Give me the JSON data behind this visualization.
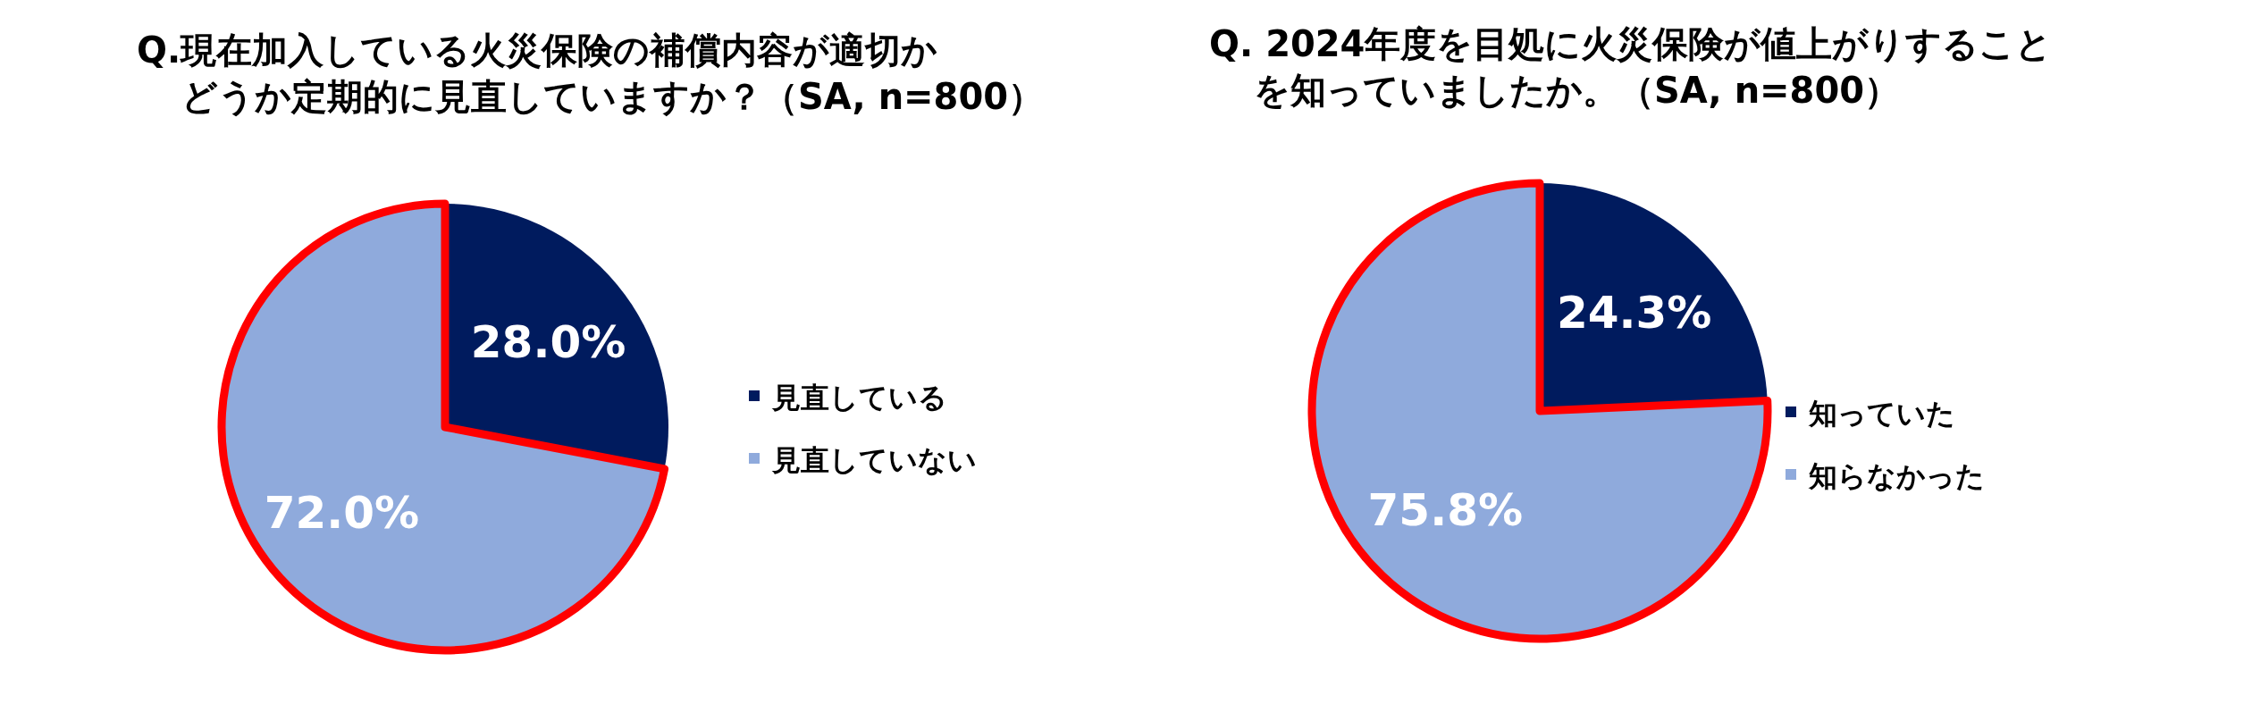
{
  "chart_data": [
    {
      "type": "pie",
      "title": "Q.現在加入している火災保険の補償内容が適切かどうか定期的に見直していますか？（SA, n=800）",
      "categories": [
        "見直している",
        "見直していない"
      ],
      "values": [
        28.0,
        72.0
      ],
      "colors": [
        "#001b5e",
        "#8faadc"
      ],
      "value_labels": [
        "28.0%",
        "72.0%"
      ],
      "legend": "right"
    },
    {
      "type": "pie",
      "title": "Q.  2024年度を目処に火災保険が値上がりすることを知っていましたか。（SA, n=800）",
      "categories": [
        "知っていた",
        "知らなかった"
      ],
      "values": [
        24.3,
        75.8
      ],
      "colors": [
        "#001b5e",
        "#8faadc"
      ],
      "value_labels": [
        "24.3%",
        "75.8%"
      ],
      "legend": "right"
    }
  ]
}
